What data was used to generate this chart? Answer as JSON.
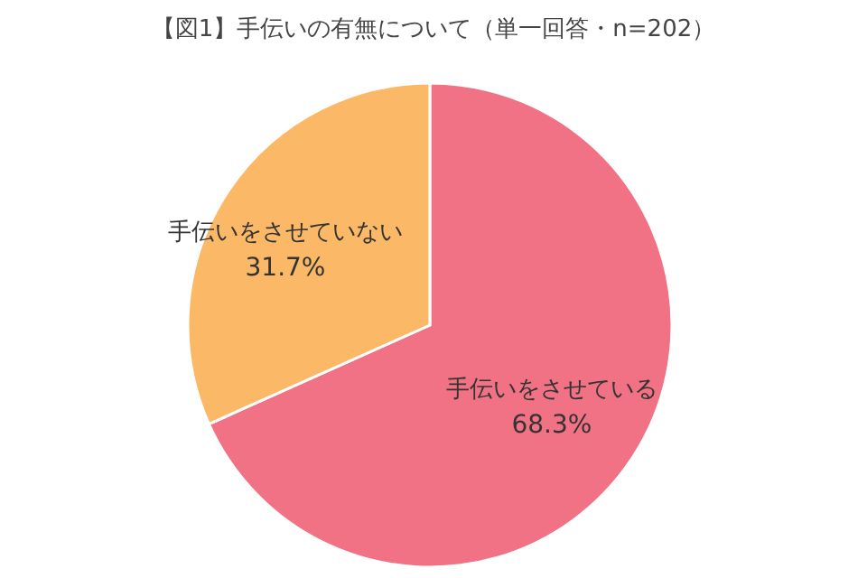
{
  "chart_data": {
    "type": "pie",
    "title": "【図1】手伝いの有無について（単一回答・n=202）",
    "categories": [
      "手伝いをさせている",
      "手伝いをさせていない"
    ],
    "values": [
      68.3,
      31.7
    ],
    "colors": [
      "#f07284",
      "#fbb866"
    ],
    "value_labels": [
      "68.3%",
      "31.7%"
    ]
  }
}
